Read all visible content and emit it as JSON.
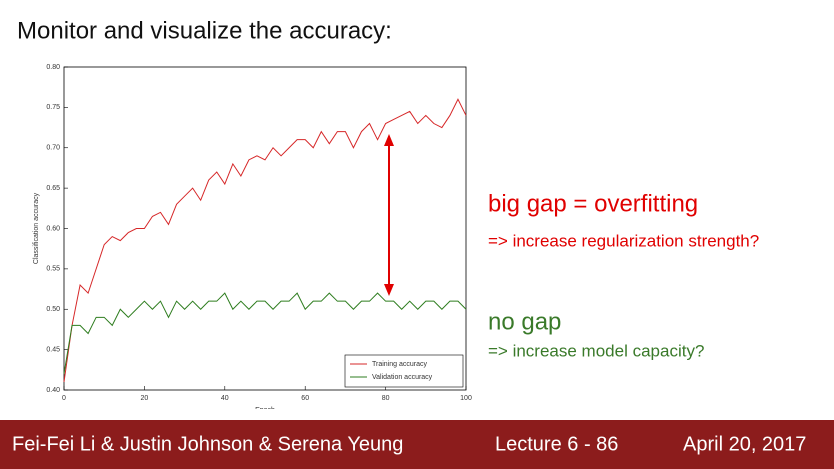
{
  "slide": {
    "title": "Monitor and visualize the accuracy:",
    "annotations": [
      "big gap = overfitting",
      "=> increase regularization strength?",
      "no gap",
      "=> increase model capacity?"
    ]
  },
  "footer": {
    "authors": "Fei-Fei Li & Justin Johnson & Serena Yeung",
    "lecture": "Lecture 6 - 86",
    "date": "April 20, 2017"
  },
  "chart_data": {
    "type": "line",
    "xlabel": "Epoch",
    "ylabel": "Classification accuracy",
    "x": [
      0,
      2,
      4,
      6,
      8,
      10,
      12,
      14,
      16,
      18,
      20,
      22,
      24,
      26,
      28,
      30,
      32,
      34,
      36,
      38,
      40,
      42,
      44,
      46,
      48,
      50,
      52,
      54,
      56,
      58,
      60,
      62,
      64,
      66,
      68,
      70,
      72,
      74,
      76,
      78,
      80,
      82,
      84,
      86,
      88,
      90,
      92,
      94,
      96,
      98,
      100
    ],
    "series": [
      {
        "name": "Training accuracy",
        "color": "#d62728",
        "values": [
          0.41,
          0.48,
          0.53,
          0.52,
          0.55,
          0.58,
          0.59,
          0.585,
          0.595,
          0.6,
          0.6,
          0.615,
          0.62,
          0.605,
          0.63,
          0.64,
          0.65,
          0.635,
          0.66,
          0.67,
          0.655,
          0.68,
          0.665,
          0.685,
          0.69,
          0.685,
          0.7,
          0.69,
          0.7,
          0.71,
          0.71,
          0.7,
          0.72,
          0.705,
          0.72,
          0.72,
          0.7,
          0.72,
          0.73,
          0.71,
          0.73,
          0.735,
          0.74,
          0.745,
          0.73,
          0.74,
          0.73,
          0.725,
          0.74,
          0.76,
          0.74
        ]
      },
      {
        "name": "Validation accuracy",
        "color": "#2e7d1f",
        "values": [
          0.42,
          0.48,
          0.48,
          0.47,
          0.49,
          0.49,
          0.48,
          0.5,
          0.49,
          0.5,
          0.51,
          0.5,
          0.51,
          0.49,
          0.51,
          0.5,
          0.51,
          0.5,
          0.51,
          0.51,
          0.52,
          0.5,
          0.51,
          0.5,
          0.51,
          0.51,
          0.5,
          0.51,
          0.51,
          0.52,
          0.5,
          0.51,
          0.51,
          0.52,
          0.51,
          0.51,
          0.5,
          0.51,
          0.51,
          0.52,
          0.51,
          0.51,
          0.5,
          0.51,
          0.5,
          0.51,
          0.51,
          0.5,
          0.51,
          0.51,
          0.5
        ]
      }
    ],
    "xlim": [
      0,
      100
    ],
    "xticks": [
      0,
      20,
      40,
      60,
      80,
      100
    ],
    "ylim": [
      0.4,
      0.8
    ],
    "yticks": [
      {
        "value": 0.4,
        "label": "0.40"
      },
      {
        "value": 0.45,
        "label": "0.45"
      },
      {
        "value": 0.5,
        "label": "0.50"
      },
      {
        "value": 0.55,
        "label": "0.55"
      },
      {
        "value": 0.6,
        "label": "0.60"
      },
      {
        "value": 0.65,
        "label": "0.65"
      },
      {
        "value": 0.7,
        "label": "0.70"
      },
      {
        "value": 0.75,
        "label": "0.75"
      },
      {
        "value": 0.8,
        "label": "0.80"
      }
    ],
    "legend": "lower right"
  }
}
